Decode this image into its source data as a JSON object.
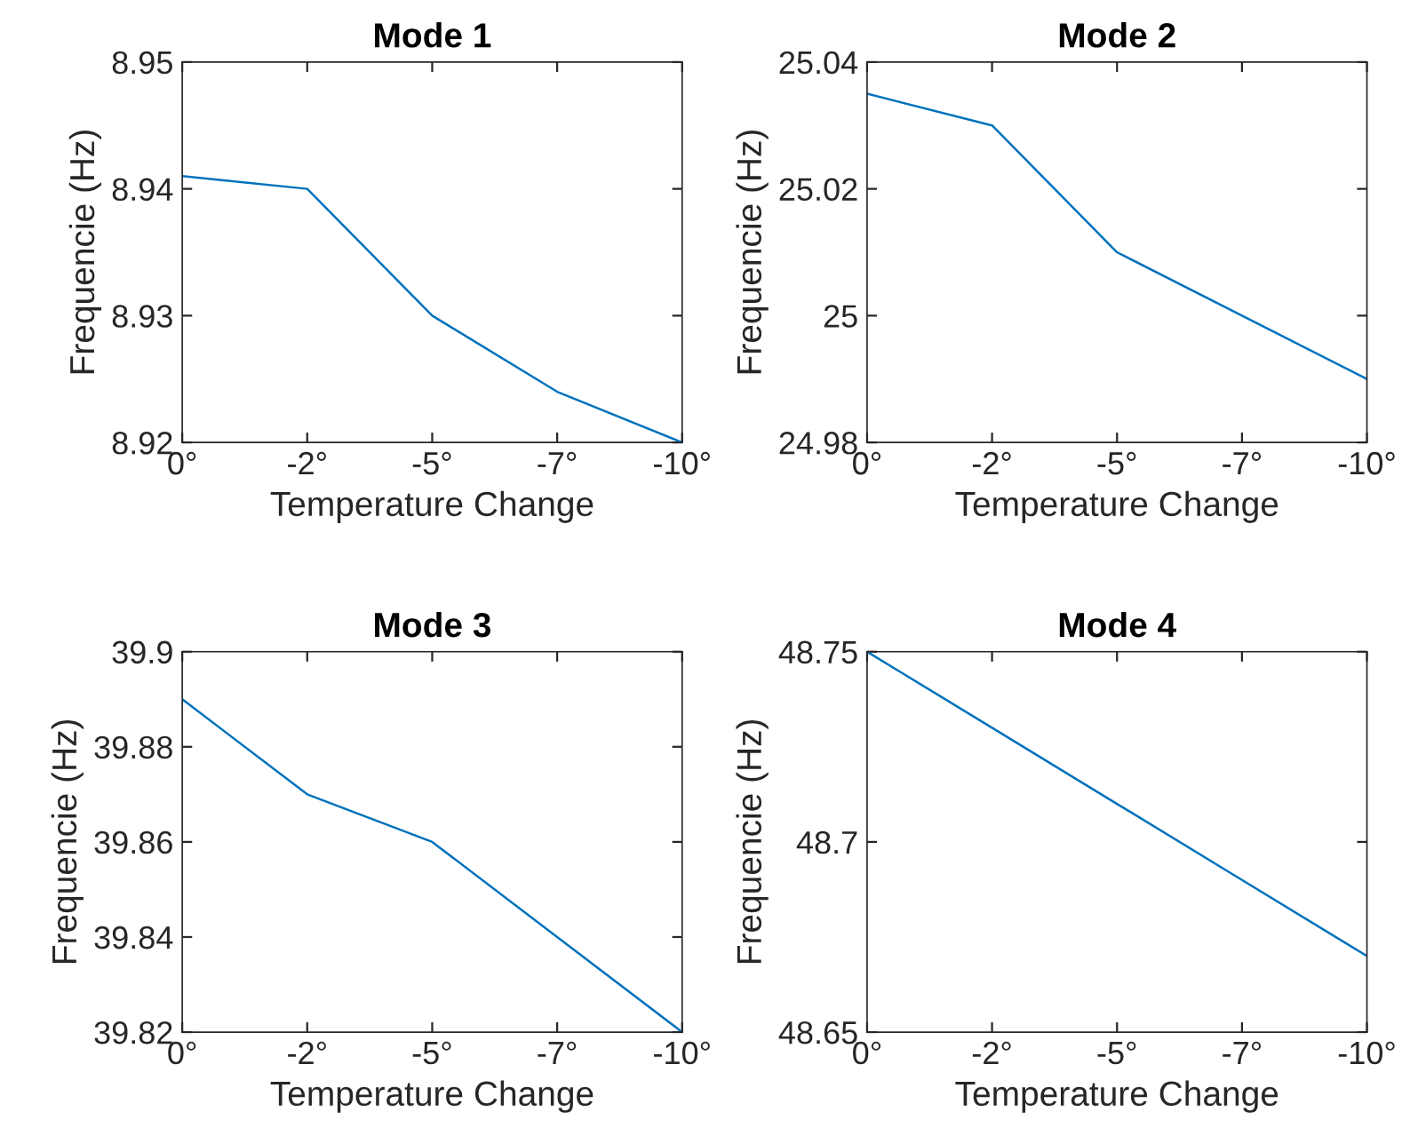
{
  "chart_data": [
    {
      "type": "line",
      "title": "Mode 1",
      "xlabel": "Temperature Change",
      "ylabel": "Frequencie (Hz)",
      "categories": [
        "0°",
        "-2°",
        "-5°",
        "-7°",
        "-10°"
      ],
      "series": [
        {
          "color": "#0072bd",
          "values": [
            8.941,
            8.94,
            8.93,
            8.924,
            8.92
          ]
        }
      ],
      "ylim": [
        8.92,
        8.95
      ],
      "yticks": [
        8.92,
        8.93,
        8.94,
        8.95
      ],
      "grid": false,
      "legend": false,
      "marker": "none",
      "line_style": "solid"
    },
    {
      "type": "line",
      "title": "Mode 2",
      "xlabel": "Temperature Change",
      "ylabel": "Frequencie (Hz)",
      "categories": [
        "0°",
        "-2°",
        "-5°",
        "-7°",
        "-10°"
      ],
      "series": [
        {
          "color": "#0072bd",
          "values": [
            25.035,
            25.03,
            25.01,
            25.0,
            24.99
          ]
        }
      ],
      "ylim": [
        24.98,
        25.04
      ],
      "yticks": [
        24.98,
        25,
        25.02,
        25.04
      ],
      "grid": false,
      "legend": false,
      "marker": "none",
      "line_style": "solid"
    },
    {
      "type": "line",
      "title": "Mode 3",
      "xlabel": "Temperature Change",
      "ylabel": "Frequencie (Hz)",
      "categories": [
        "0°",
        "-2°",
        "-5°",
        "-7°",
        "-10°"
      ],
      "series": [
        {
          "color": "#0072bd",
          "values": [
            39.89,
            39.87,
            39.86,
            39.84,
            39.82
          ]
        }
      ],
      "ylim": [
        39.82,
        39.9
      ],
      "yticks": [
        39.82,
        39.84,
        39.86,
        39.88,
        39.9
      ],
      "grid": false,
      "legend": false,
      "marker": "none",
      "line_style": "solid"
    },
    {
      "type": "line",
      "title": "Mode 4",
      "xlabel": "Temperature Change",
      "ylabel": "Frequencie (Hz)",
      "categories": [
        "0°",
        "-2°",
        "-5°",
        "-7°",
        "-10°"
      ],
      "series": [
        {
          "color": "#0072bd",
          "values": [
            48.75,
            48.73,
            48.71,
            48.69,
            48.67
          ]
        }
      ],
      "ylim": [
        48.65,
        48.75
      ],
      "yticks": [
        48.65,
        48.7,
        48.75
      ],
      "grid": false,
      "legend": false,
      "marker": "none",
      "line_style": "solid"
    }
  ]
}
